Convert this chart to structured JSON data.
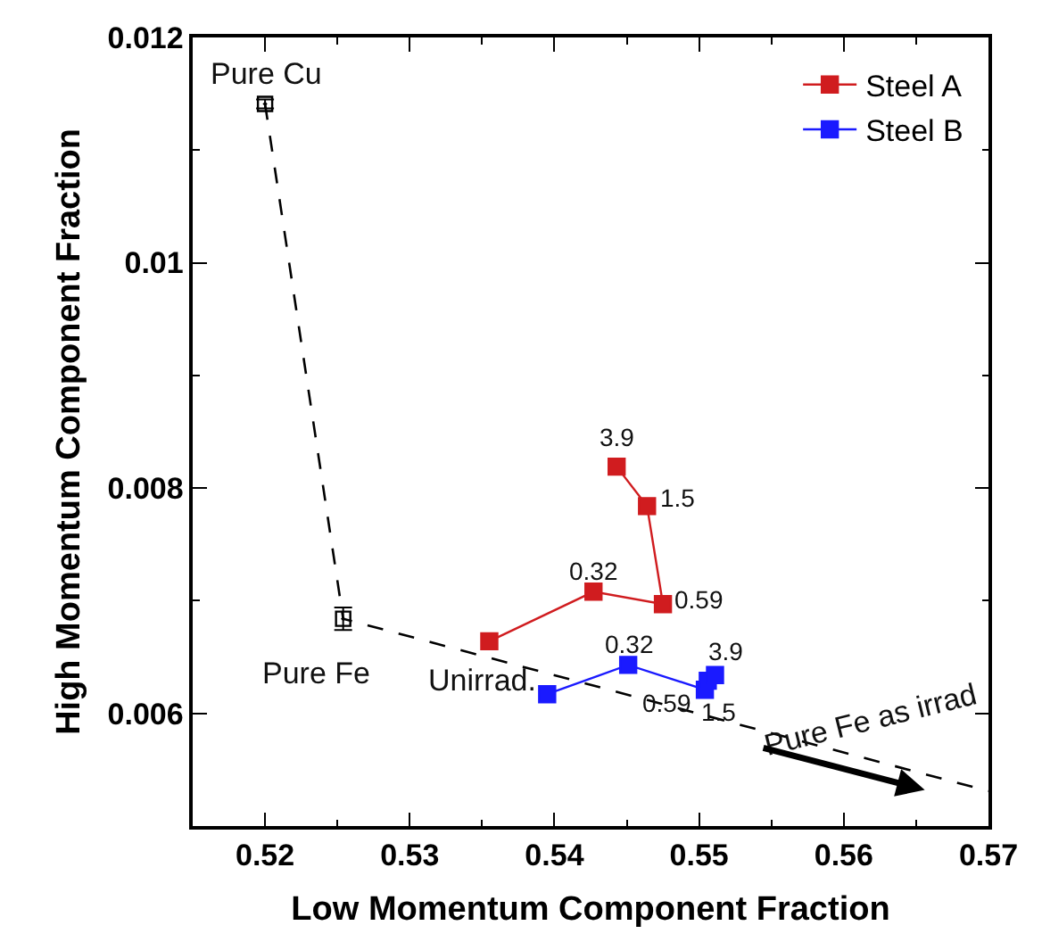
{
  "chart_data": {
    "type": "line",
    "xlabel": "Low Momentum Component Fraction",
    "ylabel": "High Momentum Component Fraction",
    "xlim": [
      0.515,
      0.57
    ],
    "xticks": [
      0.52,
      0.53,
      0.54,
      0.55,
      0.56,
      0.57
    ],
    "ylim": [
      0.005,
      0.012
    ],
    "yticks": [
      0.006,
      0.008,
      0.01,
      0.012
    ],
    "legend": "top right",
    "marker": "square",
    "series": [
      {
        "name": "Steel A",
        "color": "#d01c1f",
        "x": [
          0.5355,
          0.5427,
          0.5475,
          0.5464,
          0.5443
        ],
        "values": [
          0.00664,
          0.00708,
          0.00697,
          0.00784,
          0.00819
        ]
      },
      {
        "name": "Steel B",
        "color": "#1a1aff",
        "x": [
          0.5395,
          0.5451,
          0.5504,
          0.5506,
          0.5511
        ],
        "values": [
          0.00617,
          0.00643,
          0.00621,
          0.00629,
          0.00634
        ]
      },
      {
        "color": "#000000",
        "x": [
          0.52,
          0.5254,
          0.57
        ],
        "values": [
          0.01141,
          0.00684,
          0.00531
        ],
        "line_style": "dashed",
        "marker": "none"
      },
      {
        "type": "scatter",
        "color": "#000000",
        "x": [
          0.52,
          0.5254
        ],
        "values": [
          0.01141,
          0.00684
        ],
        "errors": [
          4e-05,
          0.0001
        ],
        "marker": "square"
      }
    ],
    "annotations": [
      {
        "text": "3.9",
        "x": 0.5443,
        "y": 0.00819
      },
      {
        "text": "1.5",
        "x": 0.5464,
        "y": 0.00784
      },
      {
        "text": "0.32",
        "x": 0.5427,
        "y": 0.00708
      },
      {
        "text": "0.59",
        "x": 0.5475,
        "y": 0.00697
      },
      {
        "text": "0.32",
        "x": 0.5451,
        "y": 0.00643
      },
      {
        "text": "3.9",
        "x": 0.5511,
        "y": 0.00634
      },
      {
        "text": "Unirrad.",
        "x": 0.5395,
        "y": 0.00617
      },
      {
        "text": "0.59",
        "x": 0.5504,
        "y": 0.00621
      },
      {
        "text": "1.5",
        "x": 0.5506,
        "y": 0.00629
      },
      {
        "text": "Pure Cu",
        "x": 0.52,
        "y": 0.01141
      },
      {
        "text": "Pure Fe",
        "x": 0.5254,
        "y": 0.00684
      },
      {
        "text": "Pure Fe as irrad",
        "x": 0.5619,
        "y": 0.00559
      }
    ]
  }
}
